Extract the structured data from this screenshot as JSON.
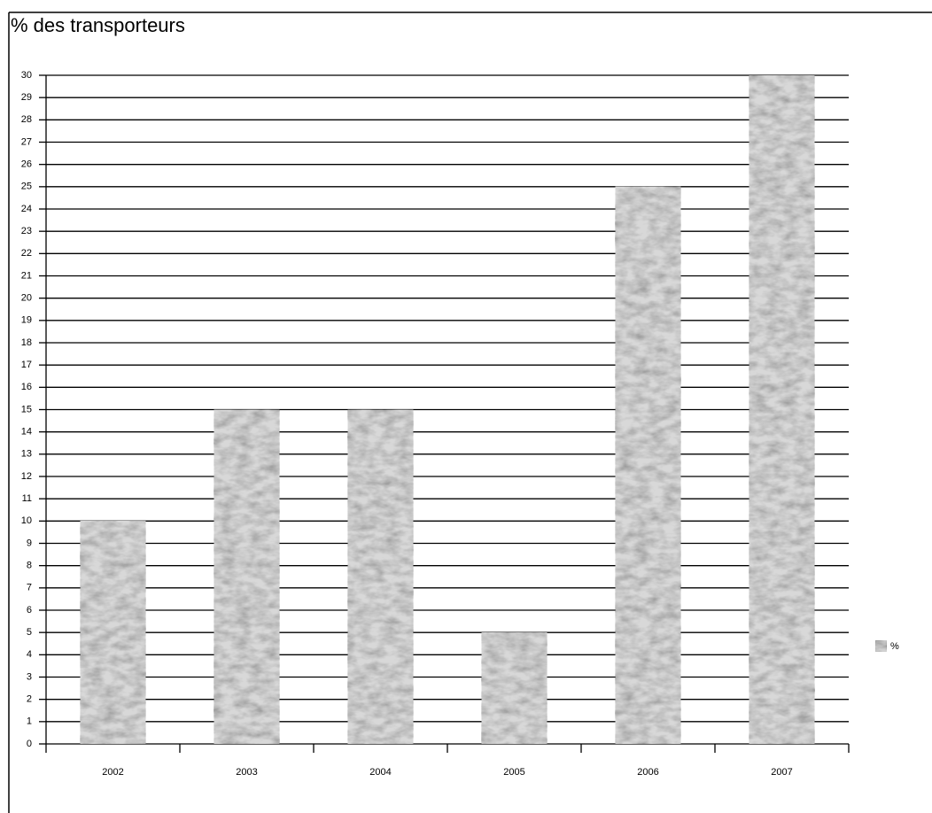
{
  "chart_data": {
    "type": "bar",
    "title": "% des transporteurs",
    "categories": [
      "2002",
      "2003",
      "2004",
      "2005",
      "2006",
      "2007"
    ],
    "series": [
      {
        "name": "%",
        "color": "#9a9a9a",
        "values": [
          10,
          15,
          15,
          5,
          25,
          30
        ]
      }
    ],
    "ylim": [
      0,
      30
    ],
    "yticks": [
      0,
      1,
      2,
      3,
      4,
      5,
      6,
      7,
      8,
      9,
      10,
      11,
      12,
      13,
      14,
      15,
      16,
      17,
      18,
      19,
      20,
      21,
      22,
      23,
      24,
      25,
      26,
      27,
      28,
      29,
      30
    ],
    "grid": true,
    "legend": "right"
  }
}
